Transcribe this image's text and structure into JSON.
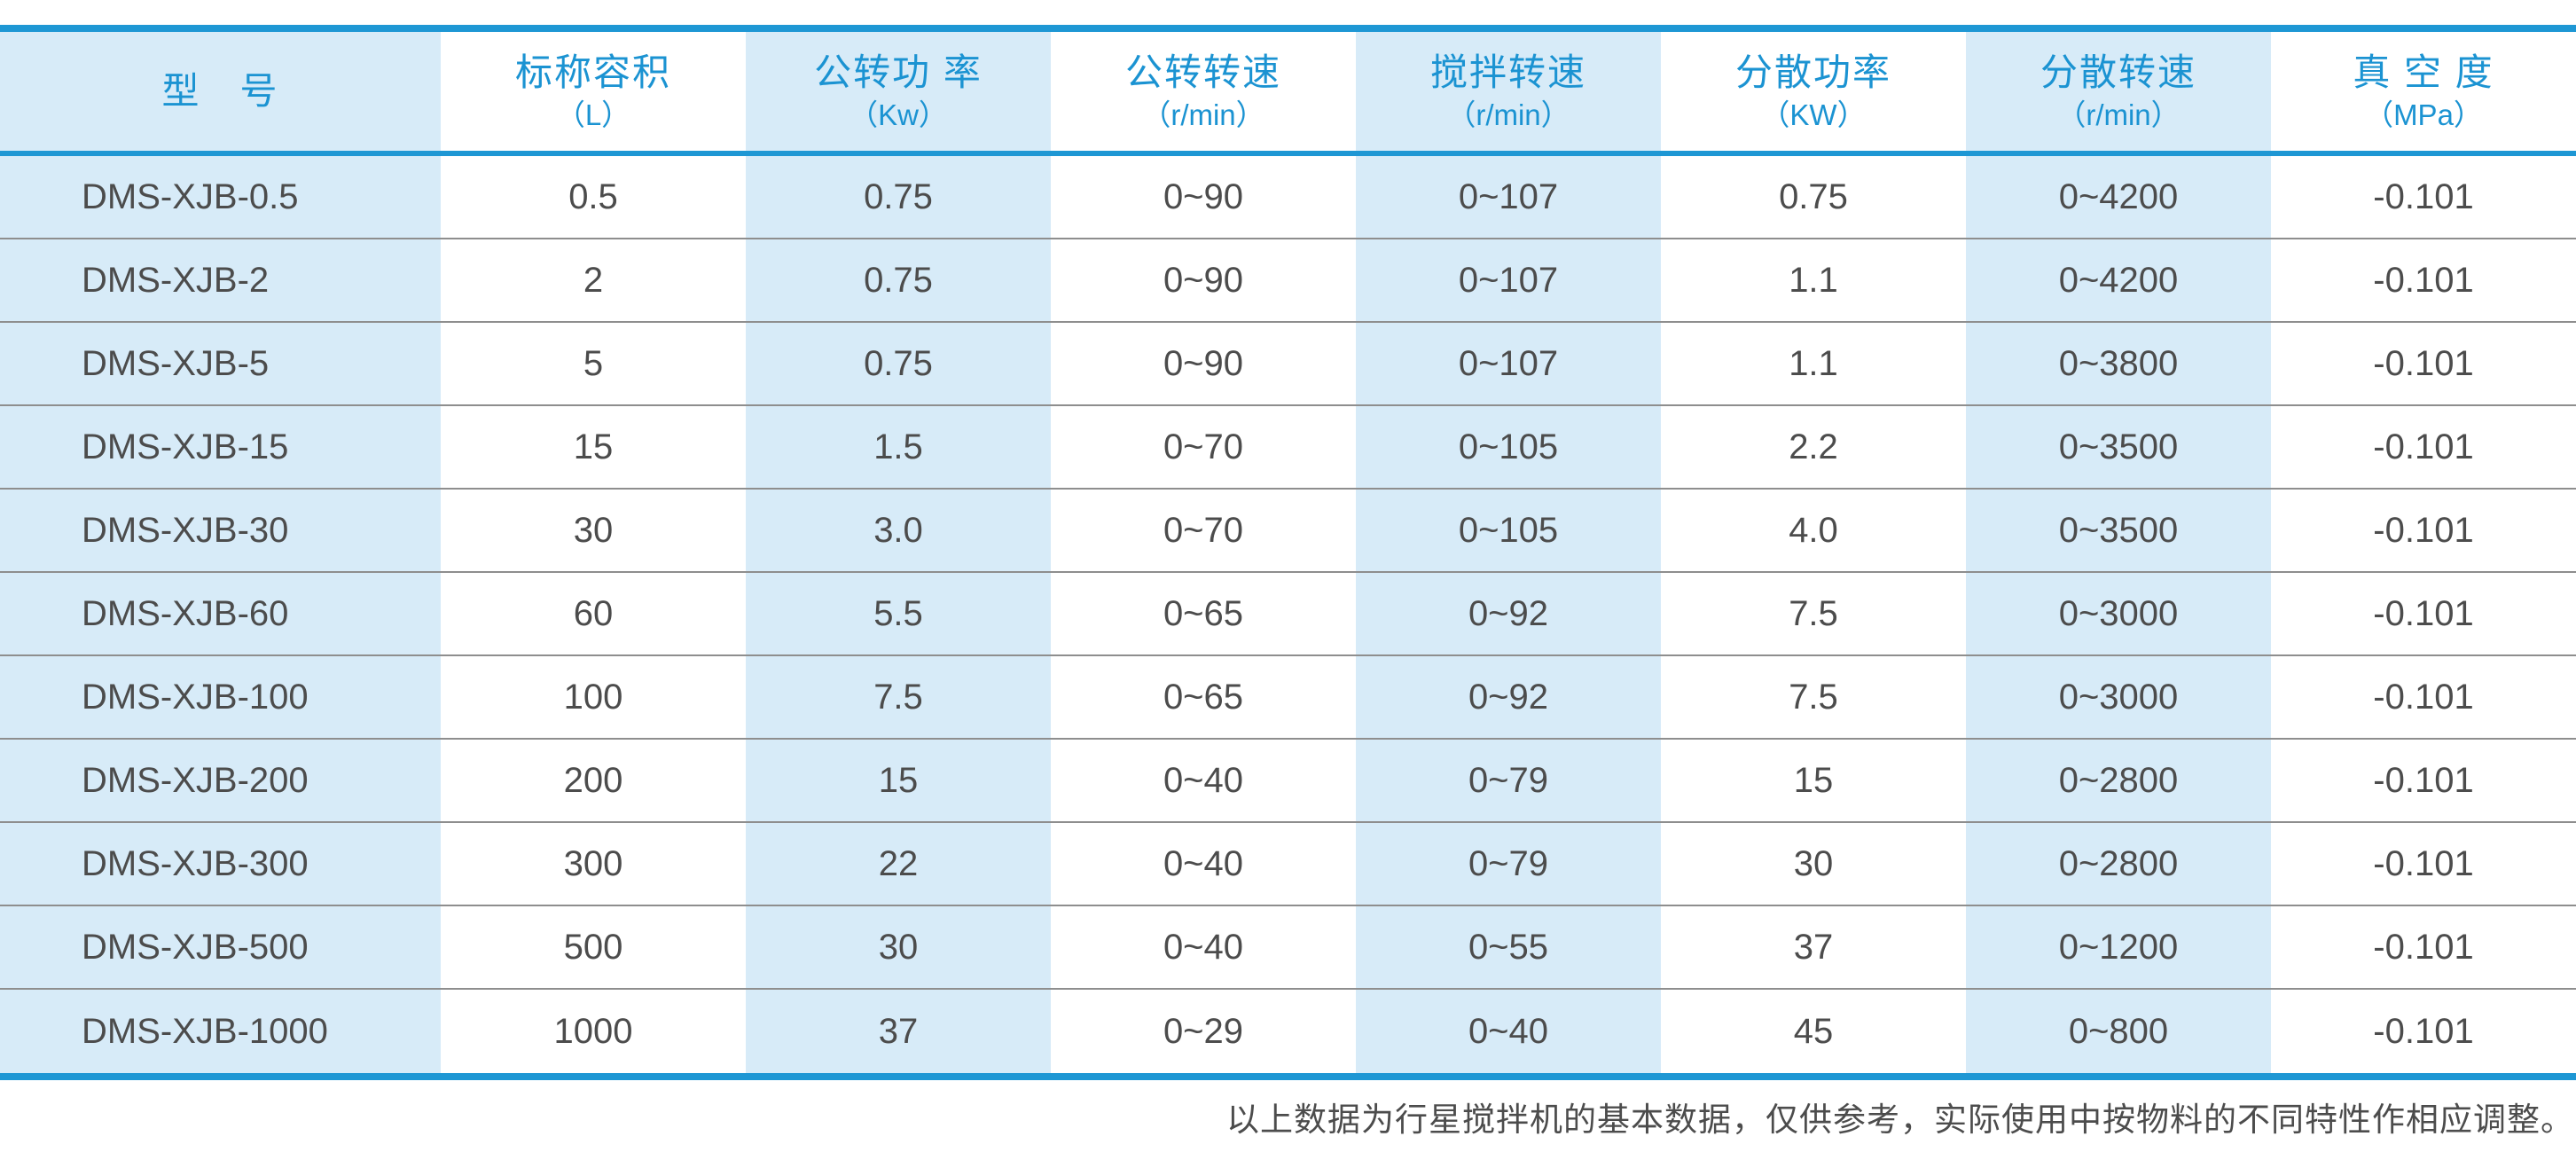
{
  "colors": {
    "accent_blue": "#1e97d4",
    "header_text_blue": "#1b93d2",
    "stripe_light_blue": "#d7ebf8",
    "body_text": "#4c4c4c",
    "row_divider_gray": "#8e8e8e"
  },
  "table": {
    "columns": [
      {
        "title": "型　号",
        "unit": ""
      },
      {
        "title": "标称容积",
        "unit": "（L）"
      },
      {
        "title": "公转功 率",
        "unit": "（Kw）"
      },
      {
        "title": "公转转速",
        "unit": "（r/min）"
      },
      {
        "title": "搅拌转速",
        "unit": "（r/min）"
      },
      {
        "title": "分散功率",
        "unit": "（KW）"
      },
      {
        "title": "分散转速",
        "unit": "（r/min）"
      },
      {
        "title": "真 空 度",
        "unit": "（MPa）"
      }
    ],
    "rows": [
      [
        "DMS-XJB-0.5",
        "0.5",
        "0.75",
        "0~90",
        "0~107",
        "0.75",
        "0~4200",
        "-0.101"
      ],
      [
        "DMS-XJB-2",
        "2",
        "0.75",
        "0~90",
        "0~107",
        "1.1",
        "0~4200",
        "-0.101"
      ],
      [
        "DMS-XJB-5",
        "5",
        "0.75",
        "0~90",
        "0~107",
        "1.1",
        "0~3800",
        "-0.101"
      ],
      [
        "DMS-XJB-15",
        "15",
        "1.5",
        "0~70",
        "0~105",
        "2.2",
        "0~3500",
        "-0.101"
      ],
      [
        "DMS-XJB-30",
        "30",
        "3.0",
        "0~70",
        "0~105",
        "4.0",
        "0~3500",
        "-0.101"
      ],
      [
        "DMS-XJB-60",
        "60",
        "5.5",
        "0~65",
        "0~92",
        "7.5",
        "0~3000",
        "-0.101"
      ],
      [
        "DMS-XJB-100",
        "100",
        "7.5",
        "0~65",
        "0~92",
        "7.5",
        "0~3000",
        "-0.101"
      ],
      [
        "DMS-XJB-200",
        "200",
        "15",
        "0~40",
        "0~79",
        "15",
        "0~2800",
        "-0.101"
      ],
      [
        "DMS-XJB-300",
        "300",
        "22",
        "0~40",
        "0~79",
        "30",
        "0~2800",
        "-0.101"
      ],
      [
        "DMS-XJB-500",
        "500",
        "30",
        "0~40",
        "0~55",
        "37",
        "0~1200",
        "-0.101"
      ],
      [
        "DMS-XJB-1000",
        "1000",
        "37",
        "0~29",
        "0~40",
        "45",
        "0~800",
        "-0.101"
      ]
    ]
  },
  "footer": {
    "note": "以上数据为行星搅拌机的基本数据，仅供参考，实际使用中按物料的不同特性作相应调整。"
  }
}
